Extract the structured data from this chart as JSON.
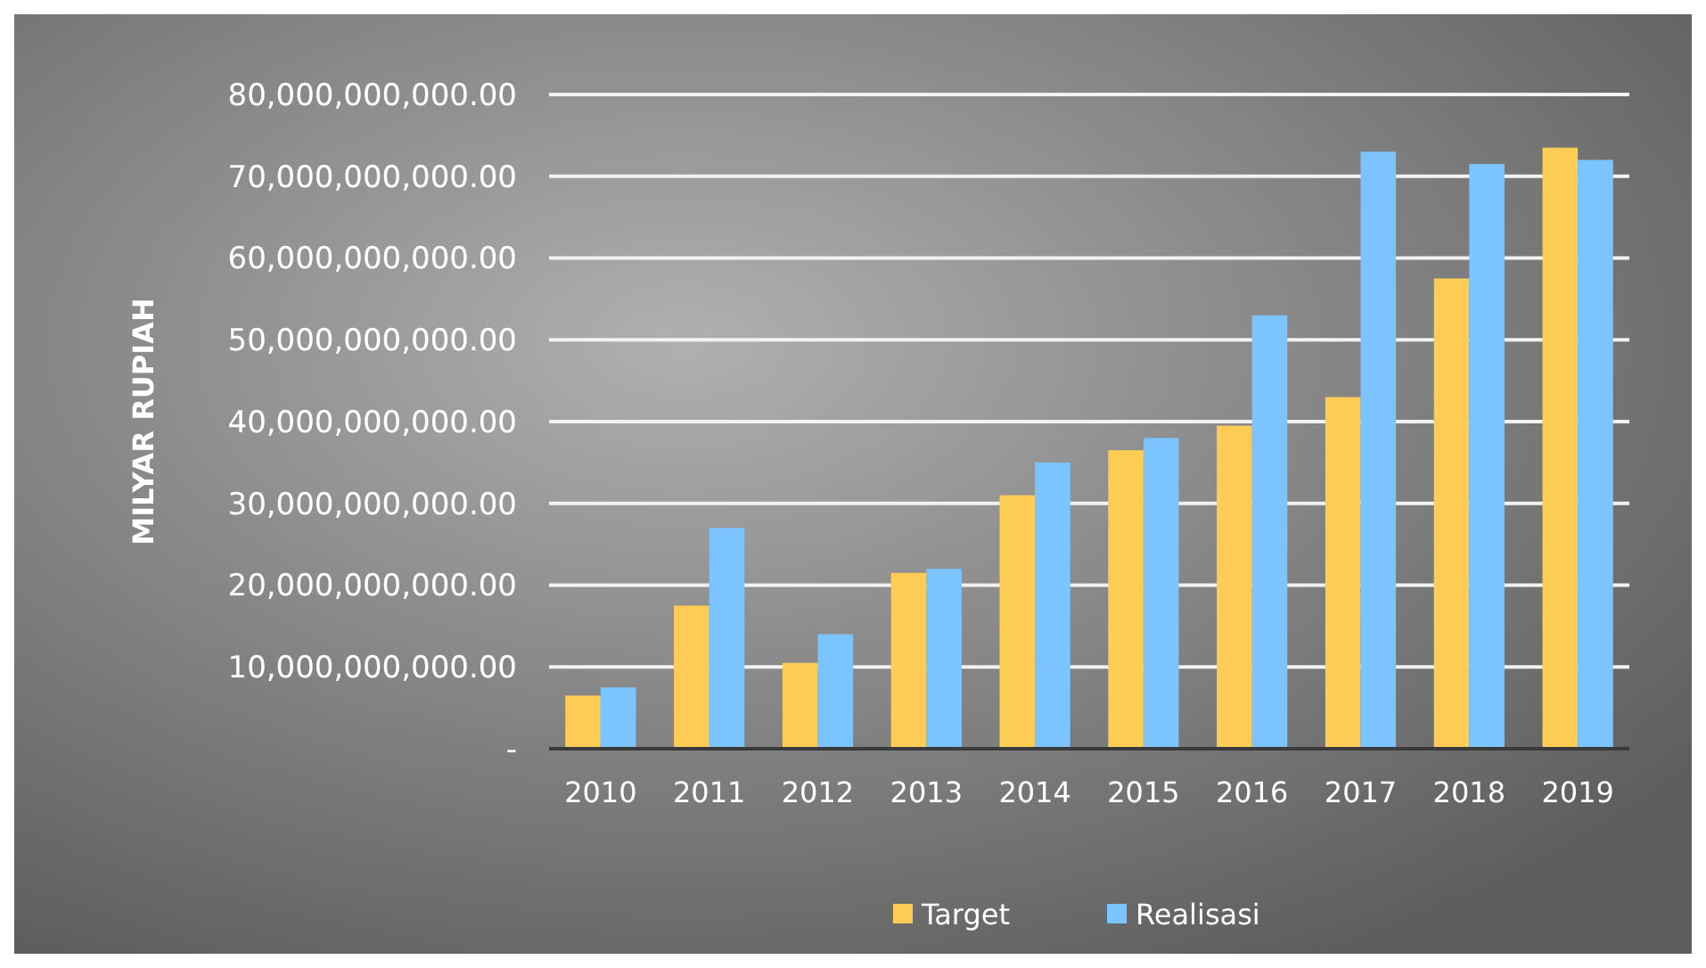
{
  "chart_data": {
    "type": "bar",
    "ylabel": "MILYAR RUPIAH",
    "categories": [
      "2010",
      "2011",
      "2012",
      "2013",
      "2014",
      "2015",
      "2016",
      "2017",
      "2018",
      "2019"
    ],
    "series": [
      {
        "name": "Target",
        "color": "#ffcc55",
        "values": [
          6500000000,
          17500000000,
          10500000000,
          21500000000,
          31000000000,
          36500000000,
          39500000000,
          43000000000,
          57500000000,
          73500000000
        ]
      },
      {
        "name": "Realisasi",
        "color": "#7cc4ff",
        "values": [
          7500000000,
          27000000000,
          14000000000,
          22000000000,
          35000000000,
          38000000000,
          53000000000,
          73000000000,
          71500000000,
          72000000000
        ]
      }
    ],
    "ylim": [
      0,
      80000000000
    ],
    "yticks": [
      {
        "value": 0,
        "label": "-"
      },
      {
        "value": 10000000000,
        "label": "10,000,000,000.00"
      },
      {
        "value": 20000000000,
        "label": "20,000,000,000.00"
      },
      {
        "value": 30000000000,
        "label": "30,000,000,000.00"
      },
      {
        "value": 40000000000,
        "label": "40,000,000,000.00"
      },
      {
        "value": 50000000000,
        "label": "50,000,000,000.00"
      },
      {
        "value": 60000000000,
        "label": "60,000,000,000.00"
      },
      {
        "value": 70000000000,
        "label": "70,000,000,000.00"
      },
      {
        "value": 80000000000,
        "label": "80,000,000,000.00"
      }
    ],
    "grid": "y",
    "legend": "bottom"
  }
}
